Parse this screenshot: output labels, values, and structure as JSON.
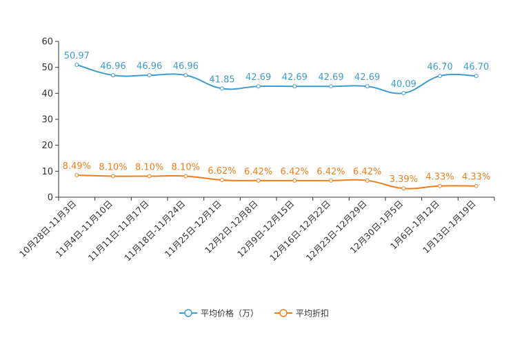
{
  "chart_data": {
    "type": "line",
    "title": "",
    "xlabel": "",
    "ylabel": "",
    "ylim": [
      0,
      60
    ],
    "yticks": [
      0,
      10,
      20,
      30,
      40,
      50,
      60
    ],
    "grid": false,
    "legend_position": "bottom-center",
    "categories": [
      "10月28日-11月3日",
      "11月4日-11月10日",
      "11月11日-11月17日",
      "11月18日-11月24日",
      "11月25日-12月1日",
      "12月2日-12月8日",
      "12月9日-12月15日",
      "12月16日-12月22日",
      "12月23日-12月29日",
      "12月30日-1月5日",
      "1月6日-1月12日",
      "1月13日-1月19日"
    ],
    "series": [
      {
        "name": "平均价格（万）",
        "color": "#3d9bd0",
        "values": [
          50.97,
          46.96,
          46.96,
          46.96,
          41.85,
          42.69,
          42.69,
          42.69,
          42.69,
          40.09,
          46.7,
          46.7
        ],
        "labels": [
          "50.97",
          "46.96",
          "46.96",
          "46.96",
          "41.85",
          "42.69",
          "42.69",
          "42.69",
          "42.69",
          "40.09",
          "46.70",
          "46.70"
        ]
      },
      {
        "name": "平均折扣",
        "color": "#f07d1a",
        "values": [
          8.49,
          8.1,
          8.1,
          8.1,
          6.62,
          6.42,
          6.42,
          6.42,
          6.42,
          3.39,
          4.33,
          4.33
        ],
        "labels": [
          "8.49%",
          "8.10%",
          "8.10%",
          "8.10%",
          "6.62%",
          "6.42%",
          "6.42%",
          "6.42%",
          "6.42%",
          "3.39%",
          "4.33%",
          "4.33%"
        ]
      }
    ]
  }
}
